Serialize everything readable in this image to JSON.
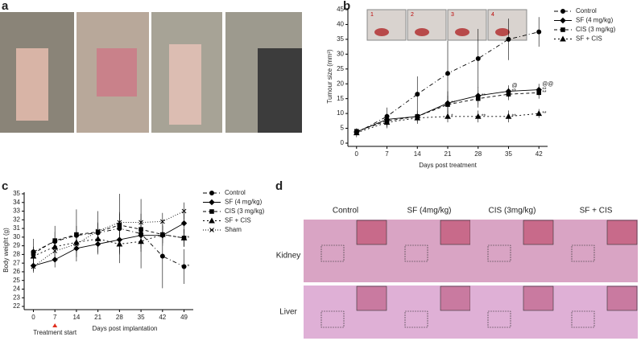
{
  "panels": {
    "labels": [
      "a",
      "b",
      "c",
      "d"
    ]
  },
  "inset_labels": [
    "1",
    "2",
    "3",
    "4"
  ],
  "chart_data": [
    {
      "type": "line",
      "ylabel": "Tumour size (mm³)",
      "xlabel": "Days post treatment",
      "x": [
        0,
        7,
        14,
        21,
        28,
        35,
        42
      ],
      "xlim": [
        -2,
        44
      ],
      "xticks": [
        0,
        7,
        14,
        21,
        28,
        35,
        42
      ],
      "ylim": [
        0,
        45
      ],
      "yticks": [
        0,
        5,
        10,
        15,
        20,
        25,
        30,
        35,
        40,
        45
      ],
      "legend": "upper right",
      "series": [
        {
          "name": "Control",
          "color": "#000",
          "marker": "circle",
          "dash": "5,3,1,3",
          "values": [
            3.5,
            9,
            16.5,
            23.5,
            28.5,
            35,
            37.5
          ],
          "errors": [
            1.5,
            3,
            6,
            11,
            10,
            7,
            5
          ]
        },
        {
          "name": "SF (4 mg/kg)",
          "color": "#000",
          "marker": "diamond",
          "dash": "none",
          "values": [
            3.8,
            8,
            9,
            13.5,
            16,
            17.5,
            18
          ],
          "errors": [
            1,
            2,
            2,
            4,
            3,
            2,
            2
          ]
        },
        {
          "name": "CIS (3 mg/kg)",
          "color": "#000",
          "marker": "square",
          "dash": "4,3",
          "values": [
            4,
            7.5,
            9,
            13,
            15,
            16.5,
            17
          ],
          "errors": [
            1,
            2,
            2,
            3,
            3,
            2,
            2
          ]
        },
        {
          "name": "SF + CIS",
          "color": "#000",
          "marker": "triangle",
          "dash": "2,3",
          "values": [
            3.5,
            7,
            8.5,
            9,
            9,
            9,
            10
          ],
          "errors": [
            1,
            2,
            2,
            2,
            2,
            2,
            1.5
          ]
        }
      ],
      "annotations": [
        {
          "text": "**",
          "series": 1,
          "index": 3
        },
        {
          "text": "*",
          "series": 3,
          "index": 3
        },
        {
          "text": "**",
          "series": 1,
          "index": 4
        },
        {
          "text": "**",
          "series": 3,
          "index": 4
        },
        {
          "text": "**",
          "series": 1,
          "index": 5
        },
        {
          "text": "**",
          "series": 3,
          "index": 5
        },
        {
          "text": "**",
          "series": 1,
          "index": 6
        },
        {
          "text": "**",
          "series": 2,
          "index": 6
        },
        {
          "text": "**",
          "series": 3,
          "index": 6
        },
        {
          "text": "@",
          "series": 1,
          "index": 5
        },
        {
          "text": "@@",
          "series": 1,
          "index": 6
        }
      ]
    },
    {
      "type": "line",
      "ylabel": "Body weight (g)",
      "xlabel": "Days post implantation",
      "x": [
        0,
        7,
        14,
        21,
        28,
        35,
        42,
        49
      ],
      "xlim": [
        -3,
        52
      ],
      "xticks": [
        0,
        7,
        14,
        21,
        28,
        35,
        42,
        49
      ],
      "ylim": [
        22,
        35
      ],
      "yticks": [
        22,
        23,
        24,
        25,
        26,
        27,
        28,
        29,
        30,
        31,
        32,
        33,
        34,
        35
      ],
      "legend": "right",
      "series": [
        {
          "name": "Control",
          "color": "#000",
          "marker": "circle",
          "dash": "5,3,1,3",
          "values": [
            28.3,
            29.5,
            30.2,
            30.5,
            31,
            30.4,
            27.8,
            26.6
          ],
          "errors": [
            1.5,
            1.8,
            3,
            2.5,
            4,
            4,
            3.7,
            2
          ]
        },
        {
          "name": "SF (4 mg/kg)",
          "color": "#000",
          "marker": "diamond",
          "dash": "none",
          "values": [
            26.7,
            27.4,
            28.7,
            29.2,
            29.7,
            30.2,
            30.2,
            31.6
          ],
          "errors": [
            0.8,
            0.9,
            1,
            1,
            1.5,
            1.5,
            1.2,
            1.2
          ]
        },
        {
          "name": "CIS (3 mg/kg)",
          "color": "#000",
          "marker": "square",
          "dash": "4,3",
          "values": [
            28.1,
            29.6,
            30.3,
            30.6,
            31.4,
            30.9,
            30.3,
            29.9
          ],
          "errors": [
            0.8,
            1,
            1,
            1,
            1.5,
            1.2,
            1,
            1
          ]
        },
        {
          "name": "SF + CIS",
          "color": "#000",
          "marker": "triangle",
          "dash": "2,3",
          "values": [
            27.8,
            28.9,
            29.4,
            29.8,
            29.2,
            29.5,
            30.3,
            29.9
          ],
          "errors": [
            0.8,
            1,
            1,
            1,
            1.2,
            1.2,
            1,
            1
          ]
        },
        {
          "name": "Sham",
          "color": "#000",
          "marker": "x",
          "dash": "1,2",
          "values": [
            26.6,
            28.4,
            29.2,
            30.7,
            31.7,
            31.7,
            31.8,
            33.0
          ],
          "errors": [
            0.5,
            0.8,
            1,
            1,
            1,
            1,
            1,
            1
          ]
        }
      ],
      "annotations": [
        {
          "text": "*",
          "series": 0,
          "index": 7
        },
        {
          "text": "*",
          "series": 3,
          "index": 7
        }
      ],
      "marker_annotation": {
        "text": "Treatment start",
        "x": 7,
        "color": "#e03020"
      }
    }
  ],
  "histology": {
    "columns": [
      "Control",
      "SF (4mg/kg)",
      "CIS (3mg/kg)",
      "SF + CIS"
    ],
    "rows": [
      "Kidney",
      "Liver"
    ]
  }
}
